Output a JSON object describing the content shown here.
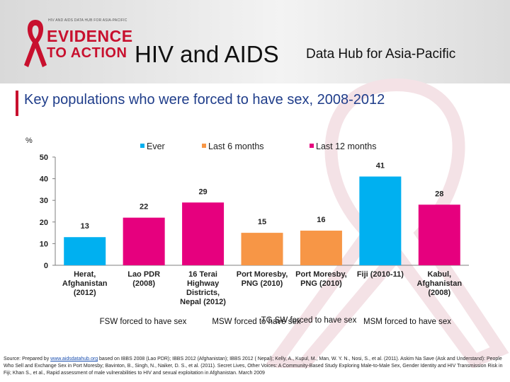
{
  "header": {
    "logo_small_text": "HIV AND AIDS DATA HUB FOR ASIA-PACIFIC",
    "logo_line1": "EVIDENCE",
    "logo_line2": "TO ACTION",
    "title": "HIV and AIDS",
    "subtitle": "Data Hub for Asia-Pacific"
  },
  "colors": {
    "brand_red": "#c8102e",
    "title_blue": "#1f3d8a",
    "ever": "#00b0f0",
    "last6": "#f79646",
    "last12": "#e6007e"
  },
  "footer": {
    "prefix": "Source: Prepared by ",
    "link": "www.aidsdatahub.org",
    "rest": " based on IBBS 2008 (Lao PDR); IBBS 2012 (Afghanistan); IBBS 2012 ( Nepal); Kelly, A., Kupul, M., Man, W. Y. N., Nosi, S., et al. (2011). Askim Na Save (Ask and Understand): People Who Sell and Exchange Sex in Port Moresby; Bavinton, B., Singh, N., Naiker, D. S., et al. (2011). Secret Lives, Other Voices: A Community-Based Study Exploring Male-to-Male Sex, Gender Identity and HIV Transmission Risk in Fiji; Khan S., et al., Rapid assessment of male vulnerabilities to HIV and sexual exploitation in Afghanistan. March 2009"
  },
  "chart_data": {
    "type": "bar",
    "title": "Key populations who were forced to have sex, 2008-2012",
    "ylabel": "%",
    "ylim": [
      0,
      50
    ],
    "yticks": [
      0,
      10,
      20,
      30,
      40,
      50
    ],
    "grid": false,
    "legend_position": "top",
    "series": [
      {
        "name": "Ever",
        "color": "#00b0f0"
      },
      {
        "name": "Last 6 months",
        "color": "#f79646"
      },
      {
        "name": "Last 12 months",
        "color": "#e6007e"
      }
    ],
    "categories": [
      "Herat,\nAfghanistan\n(2012)",
      "Lao PDR\n(2008)",
      "16 Terai\nHighway\nDistricts,\nNepal (2012)",
      "Port Moresby,\nPNG (2010)",
      "Port Moresby,\nPNG (2010)",
      "Fiji (2010-11)",
      "Kabul,\nAfghanistan\n(2008)"
    ],
    "bars": [
      {
        "category": 0,
        "series": 0,
        "value": 13
      },
      {
        "category": 1,
        "series": 2,
        "value": 22
      },
      {
        "category": 2,
        "series": 2,
        "value": 29
      },
      {
        "category": 3,
        "series": 1,
        "value": 15
      },
      {
        "category": 4,
        "series": 1,
        "value": 16
      },
      {
        "category": 5,
        "series": 0,
        "value": 41
      },
      {
        "category": 6,
        "series": 2,
        "value": 28
      }
    ],
    "group_labels": [
      "FSW forced to have sex",
      "MSW forced to have sex",
      "TG SW forced to have sex",
      "MSM forced to have sex"
    ]
  }
}
